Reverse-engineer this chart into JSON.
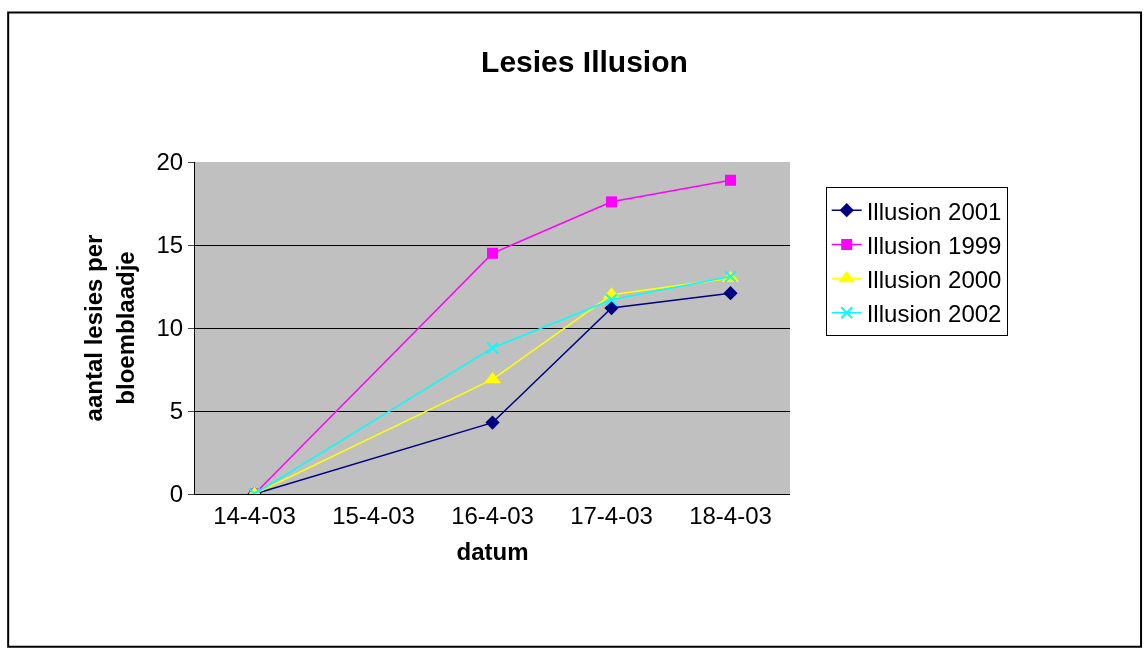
{
  "chart_data": {
    "type": "line",
    "title": "Lesies Illusion",
    "xlabel": "datum",
    "ylabel": "aantal lesies per bloemblaadje",
    "categories": [
      "14-4-03",
      "15-4-03",
      "16-4-03",
      "17-4-03",
      "18-4-03"
    ],
    "series": [
      {
        "name": "Illusion 2001",
        "color": "#000080",
        "marker": "diamond",
        "values": [
          0,
          null,
          4.3,
          11.2,
          12.1
        ]
      },
      {
        "name": "Illusion 1999",
        "color": "#ff00ff",
        "marker": "square",
        "values": [
          0,
          null,
          14.5,
          17.6,
          18.9
        ]
      },
      {
        "name": "Illusion 2000",
        "color": "#ffff00",
        "marker": "triangle",
        "values": [
          0,
          null,
          6.9,
          12.0,
          13.0
        ]
      },
      {
        "name": "Illusion 2002",
        "color": "#00ffff",
        "marker": "cross",
        "values": [
          0,
          null,
          8.8,
          11.7,
          13.1
        ]
      }
    ],
    "ylim": [
      0,
      20
    ],
    "yticks": [
      0,
      5,
      10,
      15,
      20
    ],
    "grid": "y",
    "legend": "right",
    "line_style": "solid"
  }
}
